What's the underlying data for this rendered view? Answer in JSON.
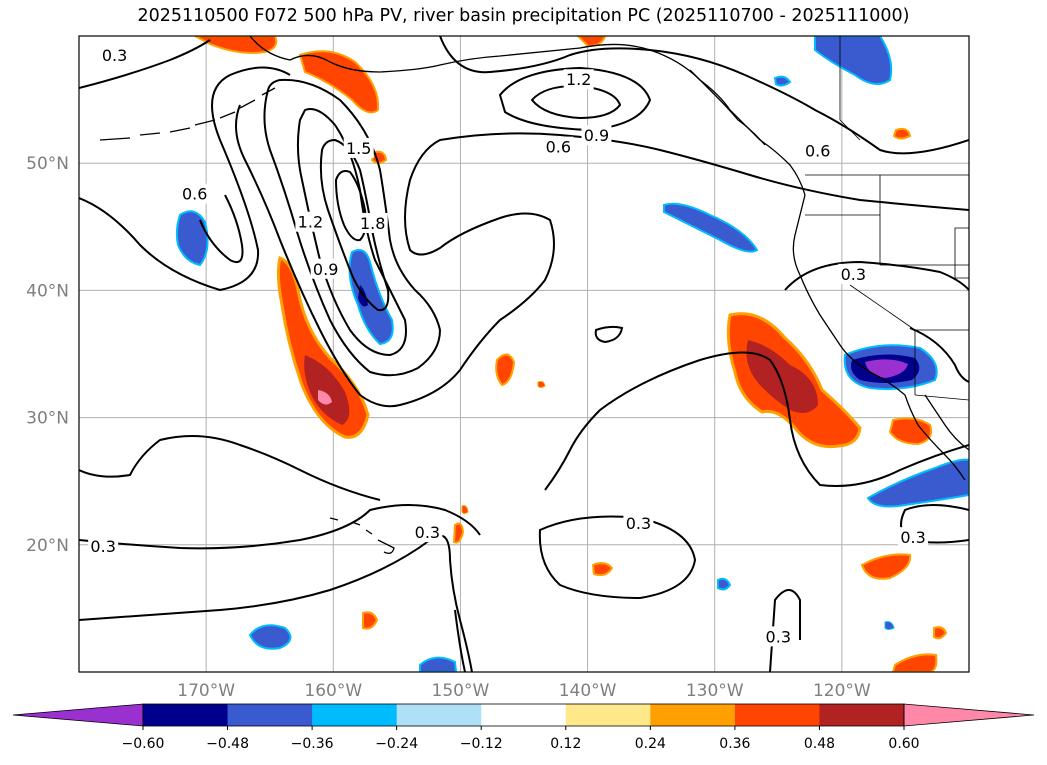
{
  "title": "2025110500 F072 500 hPa PV, river basin precipitation PC (2025110700 - 2025111000)",
  "map": {
    "projection": "lat-lon",
    "lon_range": [
      -180,
      -110
    ],
    "lat_range": [
      10,
      60
    ],
    "lat_labels": [
      {
        "lat": 50,
        "text": "50°N"
      },
      {
        "lat": 40,
        "text": "40°N"
      },
      {
        "lat": 30,
        "text": "30°N"
      },
      {
        "lat": 20,
        "text": "20°N"
      }
    ],
    "lon_labels": [
      {
        "lon": -170,
        "text": "170°W"
      },
      {
        "lon": -160,
        "text": "160°W"
      },
      {
        "lon": -150,
        "text": "150°W"
      },
      {
        "lon": -140,
        "text": "140°W"
      },
      {
        "lon": -130,
        "text": "130°W"
      },
      {
        "lon": -120,
        "text": "120°W"
      }
    ],
    "gridlines": true,
    "contour_labels": [
      {
        "text": "0.3",
        "lon": -177.2,
        "lat": 58.5
      },
      {
        "text": "1.2",
        "lon": -140.7,
        "lat": 56.6
      },
      {
        "text": "0.9",
        "lon": -139.3,
        "lat": 52.2
      },
      {
        "text": "0.6",
        "lon": -142.3,
        "lat": 51.3
      },
      {
        "text": "0.6",
        "lon": -121.9,
        "lat": 51.0
      },
      {
        "text": "1.5",
        "lon": -158.0,
        "lat": 51.2
      },
      {
        "text": "0.6",
        "lon": -170.9,
        "lat": 47.6
      },
      {
        "text": "1.8",
        "lon": -156.9,
        "lat": 45.3
      },
      {
        "text": "1.2",
        "lon": -161.8,
        "lat": 45.4
      },
      {
        "text": "0.9",
        "lon": -160.6,
        "lat": 41.7
      },
      {
        "text": "0.3",
        "lon": -119.1,
        "lat": 41.3
      },
      {
        "text": "0.3",
        "lon": -136.0,
        "lat": 21.7
      },
      {
        "text": "0.3",
        "lon": -178.1,
        "lat": 19.9
      },
      {
        "text": "0.3",
        "lon": -152.6,
        "lat": 21.0
      },
      {
        "text": "0.3",
        "lon": -114.4,
        "lat": 20.6
      },
      {
        "text": "0.3",
        "lon": -125.0,
        "lat": 12.8
      }
    ]
  },
  "colorbar": {
    "tick_labels": [
      "−0.60",
      "−0.48",
      "−0.36",
      "−0.24",
      "−0.12",
      "0.12",
      "0.24",
      "0.36",
      "0.48",
      "0.60"
    ],
    "colors": [
      "#9b30d0",
      "#00008c",
      "#3a5bd0",
      "#00bcff",
      "#aee0f8",
      "#ffffff",
      "#ffe88a",
      "#ffa000",
      "#ff4500",
      "#b22222",
      "#ff88a8"
    ],
    "extend": "both"
  }
}
